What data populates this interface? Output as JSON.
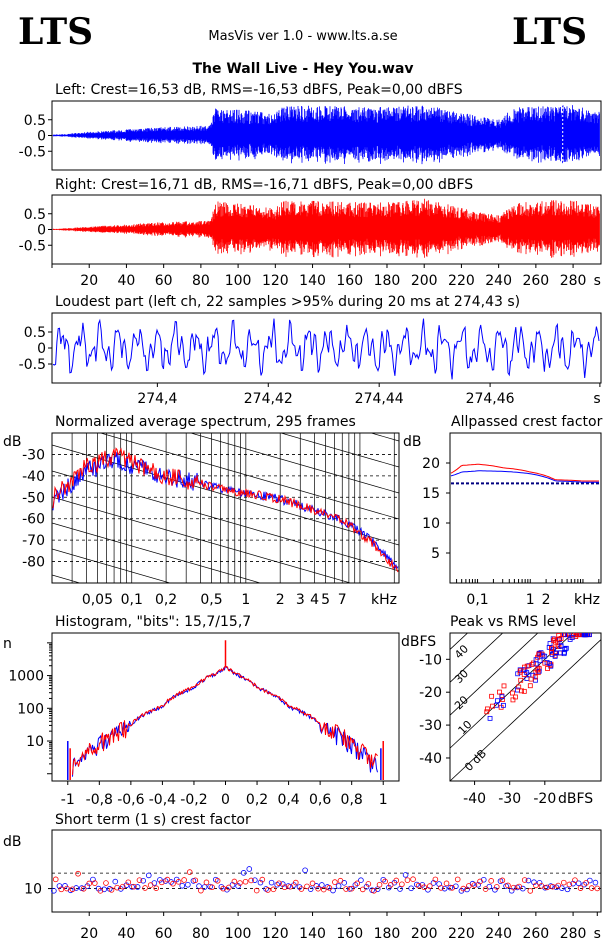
{
  "header": {
    "logo_left": "LTS",
    "logo_right": "LTS",
    "app": "MasVis ver 1.0 - www.lts.a.se",
    "file": "The Wall Live - Hey You.wav"
  },
  "colors": {
    "left": "#0000ff",
    "right": "#ff0000"
  },
  "chart_data": [
    {
      "id": "left-waveform",
      "type": "line",
      "title": "Left: Crest=16,53 dB, RMS=-16,53 dBFS, Peak=0,00 dBFS",
      "yticks": [
        "0.5",
        "0",
        "-0.5"
      ],
      "ylim": [
        -1,
        1
      ],
      "xlim": [
        0,
        295
      ],
      "amp_envelope": [
        [
          0,
          0.03
        ],
        [
          8,
          0.05
        ],
        [
          20,
          0.12
        ],
        [
          35,
          0.17
        ],
        [
          50,
          0.24
        ],
        [
          65,
          0.28
        ],
        [
          85,
          0.32
        ],
        [
          88,
          0.9
        ],
        [
          120,
          0.72
        ],
        [
          125,
          0.98
        ],
        [
          175,
          0.9
        ],
        [
          200,
          0.98
        ],
        [
          230,
          0.6
        ],
        [
          240,
          0.5
        ],
        [
          248,
          0.9
        ],
        [
          280,
          0.98
        ],
        [
          290,
          0.85
        ],
        [
          293,
          0.8
        ]
      ]
    },
    {
      "id": "right-waveform",
      "type": "line",
      "title": "Right: Crest=16,71 dB, RMS=-16,71 dBFS, Peak=0,00 dBFS",
      "yticks": [
        "0.5",
        "0",
        "-0.5"
      ],
      "ylim": [
        -1,
        1
      ],
      "xlim": [
        0,
        295
      ],
      "xticks": [
        "20",
        "40",
        "60",
        "80",
        "100",
        "120",
        "140",
        "160",
        "180",
        "200",
        "220",
        "240",
        "260",
        "280",
        "s"
      ],
      "amp_envelope": [
        [
          0,
          0.02
        ],
        [
          8,
          0.04
        ],
        [
          20,
          0.1
        ],
        [
          35,
          0.14
        ],
        [
          50,
          0.2
        ],
        [
          65,
          0.25
        ],
        [
          85,
          0.28
        ],
        [
          88,
          0.9
        ],
        [
          120,
          0.7
        ],
        [
          125,
          0.95
        ],
        [
          175,
          0.85
        ],
        [
          200,
          0.98
        ],
        [
          230,
          0.55
        ],
        [
          240,
          0.45
        ],
        [
          248,
          0.85
        ],
        [
          280,
          0.98
        ],
        [
          290,
          0.8
        ],
        [
          293,
          0.75
        ]
      ]
    },
    {
      "id": "loudest-part",
      "type": "line",
      "title": "Loudest part (left  ch, 22 samples >95% during 20 ms at 274,43 s)",
      "yticks": [
        "0.5",
        "0",
        "-0.5"
      ],
      "ylim": [
        -1,
        1
      ],
      "xlim": [
        274.381,
        274.48
      ],
      "xticks": [
        "274,4",
        "274,42",
        "274,44",
        "274,46",
        "s"
      ]
    },
    {
      "id": "avg-spectrum",
      "type": "line",
      "title": "Normalized average spectrum, 295 frames",
      "ylabel": "dB",
      "yticks": [
        "-30",
        "-40",
        "-50",
        "-60",
        "-70",
        "-80"
      ],
      "ylim": [
        -90,
        -20
      ],
      "xticks": [
        "0,05",
        "0,1",
        "0,2",
        "0,5",
        "1",
        "2",
        "3",
        "4",
        "5",
        "7",
        "kHz"
      ],
      "xlim": [
        0.02,
        22
      ],
      "series": [
        {
          "points": [
            [
              0.02,
              -52
            ],
            [
              0.025,
              -47
            ],
            [
              0.03,
              -43
            ],
            [
              0.04,
              -37
            ],
            [
              0.05,
              -36
            ],
            [
              0.07,
              -33
            ],
            [
              0.1,
              -35
            ],
            [
              0.15,
              -39
            ],
            [
              0.2,
              -41
            ],
            [
              0.3,
              -42
            ],
            [
              0.5,
              -45
            ],
            [
              0.7,
              -47
            ],
            [
              1,
              -48
            ],
            [
              2,
              -51
            ],
            [
              3,
              -54
            ],
            [
              5,
              -58
            ],
            [
              7,
              -61
            ],
            [
              10,
              -66
            ],
            [
              15,
              -74
            ],
            [
              20,
              -82
            ]
          ]
        },
        {
          "points": [
            [
              0.02,
              -51
            ],
            [
              0.025,
              -46
            ],
            [
              0.03,
              -42
            ],
            [
              0.04,
              -36
            ],
            [
              0.05,
              -34
            ],
            [
              0.07,
              -31
            ],
            [
              0.1,
              -33
            ],
            [
              0.15,
              -38
            ],
            [
              0.2,
              -40
            ],
            [
              0.3,
              -42
            ],
            [
              0.5,
              -45
            ],
            [
              0.7,
              -47
            ],
            [
              1,
              -48
            ],
            [
              2,
              -51
            ],
            [
              3,
              -54
            ],
            [
              5,
              -58
            ],
            [
              7,
              -61
            ],
            [
              10,
              -67
            ],
            [
              15,
              -75
            ],
            [
              20,
              -83
            ]
          ]
        }
      ]
    },
    {
      "id": "allpassed-crest",
      "type": "line",
      "title": "Allpassed crest factor",
      "ylabel": "dB",
      "yticks": [
        "20",
        "15",
        "10",
        "5"
      ],
      "ylim": [
        0,
        25
      ],
      "xticks": [
        "0,1",
        "1",
        "2",
        "kHz"
      ],
      "xlim": [
        0.03,
        22
      ],
      "reference": 16.6,
      "series": [
        {
          "points": [
            [
              0.03,
              17.8
            ],
            [
              0.05,
              18.5
            ],
            [
              0.1,
              18.7
            ],
            [
              0.3,
              18.6
            ],
            [
              1,
              18.2
            ],
            [
              3,
              17.0
            ],
            [
              10,
              16.8
            ],
            [
              22,
              16.8
            ]
          ]
        },
        {
          "points": [
            [
              0.03,
              18.2
            ],
            [
              0.05,
              19.6
            ],
            [
              0.1,
              19.8
            ],
            [
              0.3,
              19.2
            ],
            [
              1,
              18.5
            ],
            [
              3,
              17.2
            ],
            [
              10,
              17.0
            ],
            [
              22,
              17.0
            ]
          ]
        }
      ]
    },
    {
      "id": "histogram",
      "type": "line",
      "title": "Histogram, \"bits\": 15,7/15,7",
      "ylabel": "n",
      "yscale": "log",
      "yticks": [
        "1000",
        "100",
        "10"
      ],
      "ylim": [
        0.6,
        20000
      ],
      "xticks": [
        "-1",
        "-0,8",
        "-0,6",
        "-0,4",
        "-0,2",
        "0",
        "0,2",
        "0,4",
        "0,6",
        "0,8",
        "1"
      ],
      "xlim": [
        -1.1,
        1.1
      ],
      "peak": 1800,
      "center_spike": 12000,
      "series": [
        {
          "points": [
            [
              -0.97,
              2
            ],
            [
              -0.9,
              3
            ],
            [
              -0.8,
              8
            ],
            [
              -0.6,
              30
            ],
            [
              -0.4,
              110
            ],
            [
              -0.2,
              420
            ],
            [
              -0.05,
              1200
            ],
            [
              0,
              1800
            ],
            [
              0.05,
              1200
            ],
            [
              0.2,
              420
            ],
            [
              0.4,
              110
            ],
            [
              0.6,
              30
            ],
            [
              0.8,
              8
            ],
            [
              0.9,
              3
            ],
            [
              0.97,
              2
            ]
          ]
        },
        {
          "points": [
            [
              -0.97,
              2.3
            ],
            [
              -0.9,
              3.5
            ],
            [
              -0.8,
              9
            ],
            [
              -0.6,
              32
            ],
            [
              -0.4,
              115
            ],
            [
              -0.2,
              430
            ],
            [
              -0.05,
              1250
            ],
            [
              0,
              1850
            ],
            [
              0.05,
              1250
            ],
            [
              0.2,
              430
            ],
            [
              0.4,
              115
            ],
            [
              0.6,
              32
            ],
            [
              0.8,
              9
            ],
            [
              0.9,
              3.5
            ],
            [
              0.97,
              2.3
            ]
          ]
        }
      ]
    },
    {
      "id": "peak-vs-rms",
      "type": "scatter",
      "title": "Peak vs RMS level",
      "ylabel": "dBFS",
      "yticks": [
        "-10",
        "-20",
        "-30",
        "-40"
      ],
      "ylim": [
        -47,
        -2
      ],
      "xlabel": "dBFS",
      "xticks": [
        "-40",
        "-30",
        "-20"
      ],
      "xlim": [
        -47,
        -4
      ],
      "crest_lines": [
        "0 dB",
        "10",
        "20",
        "30",
        "40"
      ]
    },
    {
      "id": "short-term-crest",
      "type": "scatter",
      "title": "Short term (1 s) crest factor",
      "ylabel": "dB",
      "yticks": [
        "10"
      ],
      "ylim": [
        0,
        35
      ],
      "xlim": [
        0,
        295
      ],
      "xticks": [
        "20",
        "40",
        "60",
        "80",
        "100",
        "120",
        "140",
        "160",
        "180",
        "200",
        "220",
        "240",
        "260",
        "280",
        "s"
      ],
      "reference_lines": [
        16.6,
        10
      ],
      "mean": 11.5
    }
  ]
}
